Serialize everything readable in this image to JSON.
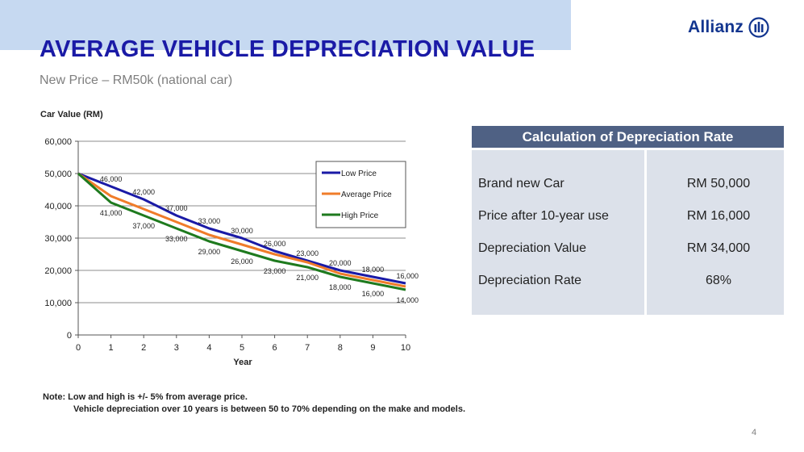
{
  "header": {
    "title": "AVERAGE VEHICLE DEPRECIATION VALUE",
    "subtitle": "New Price – RM50k (national car)",
    "logo_text": "Allianz",
    "logo_icon": "allianz-eagle-icon",
    "band_color": "#c6d9f1",
    "title_color": "#1a1aa6"
  },
  "chart_data": {
    "type": "line",
    "title": "",
    "xlabel": "Year",
    "ylabel": "Car Value (RM)",
    "x": [
      0,
      1,
      2,
      3,
      4,
      5,
      6,
      7,
      8,
      9,
      10
    ],
    "xlim": [
      0,
      10
    ],
    "ylim": [
      0,
      60000
    ],
    "yticks": [
      "0",
      "10,000",
      "20,000",
      "30,000",
      "40,000",
      "50,000",
      "60,000"
    ],
    "xticks": [
      "0",
      "1",
      "2",
      "3",
      "4",
      "5",
      "6",
      "7",
      "8",
      "9",
      "10"
    ],
    "grid": true,
    "legend_position": "top-right",
    "series": [
      {
        "name": "Low Price",
        "color": "#1a1aa6",
        "values": [
          50000,
          46000,
          42000,
          37000,
          33000,
          30000,
          26000,
          23000,
          20000,
          18000,
          16000
        ],
        "labels": [
          "",
          "46,000",
          "42,000",
          "37,000",
          "33,000",
          "30,000",
          "26,000",
          "23,000",
          "20,000",
          "18,000",
          "16,000"
        ],
        "label_side": "above"
      },
      {
        "name": "Average Price",
        "color": "#f07c2a",
        "values": [
          50000,
          43000,
          39000,
          35000,
          31000,
          28000,
          25000,
          22500,
          19000,
          17000,
          15000
        ],
        "labels": [],
        "label_side": "none"
      },
      {
        "name": "High Price",
        "color": "#1e7a1e",
        "values": [
          50000,
          41000,
          37000,
          33000,
          29000,
          26000,
          23000,
          21000,
          18000,
          16000,
          14000
        ],
        "labels": [
          "",
          "41,000",
          "37,000",
          "33,000",
          "29,000",
          "26,000",
          "23,000",
          "21,000",
          "18,000",
          "16,000",
          "14,000"
        ],
        "label_side": "below"
      }
    ]
  },
  "calc_table": {
    "header": "Calculation of Depreciation Rate",
    "rows": [
      {
        "label": "Brand new Car",
        "value": "RM 50,000"
      },
      {
        "label": "Price after 10-year use",
        "value": "RM 16,000"
      },
      {
        "label": "Depreciation Value",
        "value": "RM 34,000"
      },
      {
        "label": "Depreciation Rate",
        "value": "68%"
      }
    ]
  },
  "note": {
    "line1": "Note: Low and high is +/- 5% from average price.",
    "line2": "Vehicle depreciation over 10 years is between 50 to 70% depending on the make and models."
  },
  "page_number": "4"
}
